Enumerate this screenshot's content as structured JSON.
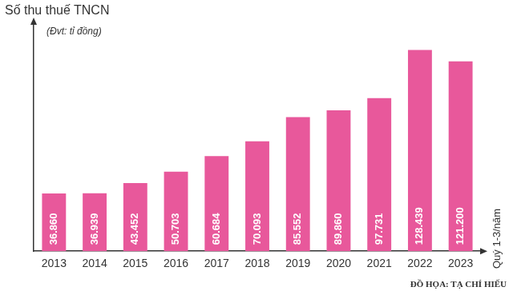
{
  "chart_data": {
    "type": "bar",
    "title": "Số thu thuế TNCN",
    "subtitle": "(Đvt: tỉ đồng)",
    "x_label": "Quý 1-3/năm",
    "annotations": [
      "ĐỒ HỌA: TẠ CHÍ HIẾU"
    ],
    "categories": [
      "2013",
      "2014",
      "2015",
      "2016",
      "2017",
      "2018",
      "2019",
      "2020",
      "2021",
      "2022",
      "2023"
    ],
    "values": [
      36860,
      36939,
      43452,
      50703,
      60684,
      70093,
      85552,
      89860,
      97731,
      128439,
      121200
    ],
    "value_labels": [
      "36.860",
      "36.939",
      "43.452",
      "50.703",
      "60.684",
      "70.093",
      "85.552",
      "89.860",
      "97.731",
      "128.439",
      "121.200"
    ],
    "color": "#e8589b",
    "ylim": [
      0,
      145000
    ],
    "grid": false,
    "data_labels": true,
    "tick_labels": "x"
  }
}
